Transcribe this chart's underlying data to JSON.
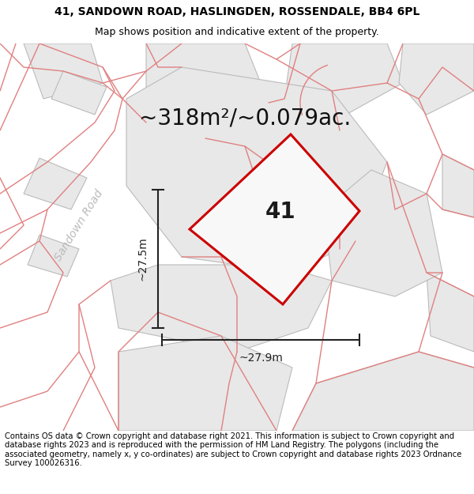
{
  "title_line1": "41, SANDOWN ROAD, HASLINGDEN, ROSSENDALE, BB4 6PL",
  "title_line2": "Map shows position and indicative extent of the property.",
  "area_text": "~318m²/~0.079ac.",
  "label_41": "41",
  "dim_vertical": "~27.5m",
  "dim_horizontal": "~27.9m",
  "road_label": "Sandown Road",
  "footer_text": "Contains OS data © Crown copyright and database right 2021. This information is subject to Crown copyright and database rights 2023 and is reproduced with the permission of HM Land Registry. The polygons (including the associated geometry, namely x, y co-ordinates) are subject to Crown copyright and database rights 2023 Ordnance Survey 100026316.",
  "bg_color": "#ffffff",
  "map_bg": "#ffffff",
  "parcel_fill": "#e8e8e8",
  "parcel_edge": "#bbbbbb",
  "plot_fill": "#f5f5f5",
  "plot_edge": "#cc0000",
  "dim_color": "#222222",
  "pink_line_color": "#e08080",
  "road_label_color": "#bbbbbb",
  "title_fontsize": 10,
  "subtitle_fontsize": 9,
  "area_fontsize": 20,
  "label_fontsize": 20,
  "dim_fontsize": 10,
  "footer_fontsize": 7.2,
  "road_label_fontsize": 10
}
